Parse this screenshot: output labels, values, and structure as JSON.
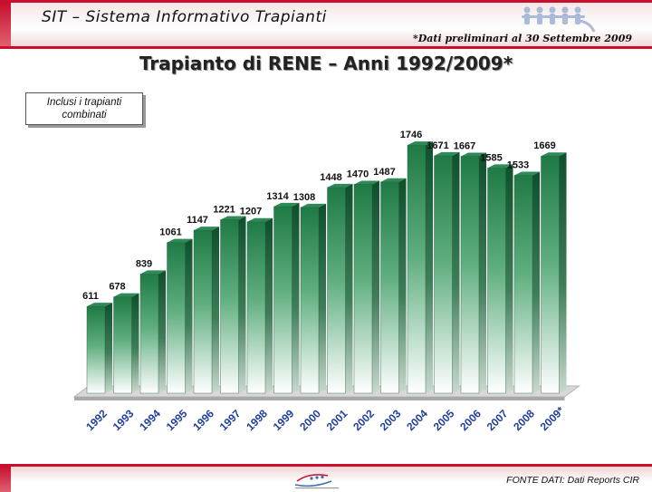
{
  "header": {
    "app_title": "SIT – Sistema Informativo Trapianti",
    "note": "*Dati preliminari al 30 Settembre 2009"
  },
  "chart_data": {
    "type": "bar",
    "title": "Trapianto di RENE – Anni 1992/2009*",
    "annotation": "Inclusi i trapianti combinati",
    "categories": [
      "1992",
      "1993",
      "1994",
      "1995",
      "1996",
      "1997",
      "1998",
      "1999",
      "2000",
      "2001",
      "2002",
      "2003",
      "2004",
      "2005",
      "2006",
      "2007",
      "2008",
      "2009*"
    ],
    "values": [
      611,
      678,
      839,
      1061,
      1147,
      1221,
      1207,
      1314,
      1308,
      1448,
      1470,
      1487,
      1746,
      1671,
      1667,
      1585,
      1533,
      1669
    ],
    "ylim": [
      0,
      1900
    ],
    "grid": false,
    "legend": "none",
    "bar_color": "#2e8b57",
    "xlabel": "",
    "ylabel": ""
  },
  "footer": {
    "source": "FONTE DATI: Dati Reports CIR"
  },
  "icons": {
    "header_logo": "people-chain-icon",
    "footer_logo": "centro-nazionale-trapianti-logo"
  }
}
